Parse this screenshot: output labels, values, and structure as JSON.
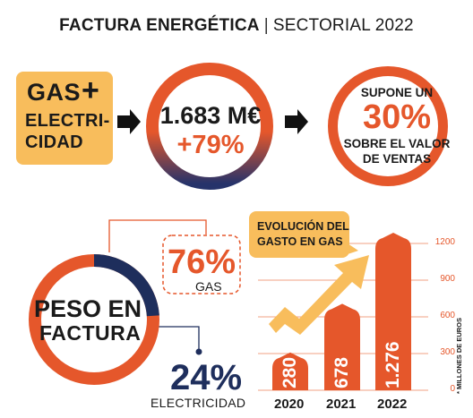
{
  "title": {
    "bold": "FACTURA ENERGÉTICA",
    "sep": "|",
    "normal": "SECTORIAL 2022"
  },
  "box_gas": {
    "line1": "GAS",
    "plus": "+",
    "line2": "ELECTRI-",
    "line3": "CIDAD"
  },
  "ring_total": {
    "amount": "1.683 M€",
    "change": "+79%"
  },
  "ring_supone": {
    "line1": "SUPONE UN",
    "pct": "30%",
    "line2": "SOBRE EL VALOR",
    "line3": "DE VENTAS"
  },
  "peso": {
    "line1": "PESO EN",
    "line2": "FACTURA",
    "gas_pct": "76%",
    "gas_label": "GAS",
    "el_pct": "24%",
    "el_label": "ELECTRICIDAD"
  },
  "evolucion": {
    "line1": "EVOLUCIÓN DEL",
    "line2": "GASTO EN GAS"
  },
  "colors": {
    "orange": "#e5572b",
    "navy": "#1e2e5c",
    "yellow": "#f8bd5c",
    "light_orange": "#f2a083"
  },
  "chart_data": [
    {
      "type": "pie",
      "slices": [
        {
          "label": "GAS",
          "value": 76
        },
        {
          "label": "ELECTRICIDAD",
          "value": 24
        }
      ]
    },
    {
      "type": "bar",
      "title": "EVOLUCIÓN DEL GASTO EN GAS",
      "categories": [
        "2020",
        "2021",
        "2022"
      ],
      "values": [
        280,
        678,
        1276
      ],
      "value_labels": [
        "280",
        "678",
        "1.276"
      ],
      "yticks": [
        0,
        300,
        600,
        900,
        1200
      ],
      "ytick_labels": [
        "0",
        "300",
        "600",
        "900",
        "1200"
      ],
      "ylim": [
        0,
        1276
      ],
      "unit": "* MILLONES DE EUROS",
      "grid": true
    }
  ]
}
